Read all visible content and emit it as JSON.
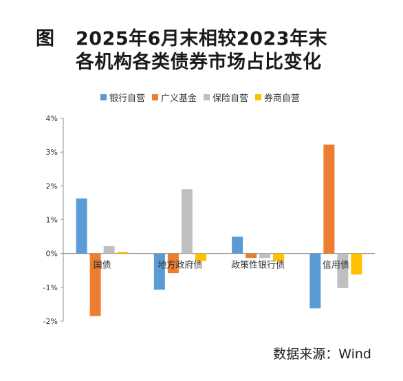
{
  "figure": {
    "label": "图",
    "title_line1": "2025年6月末相较2023年末",
    "title_line2": "各机构各类债券市场占比变化",
    "source": "数据来源：Wind"
  },
  "chart_data": {
    "type": "bar",
    "categories": [
      "国债",
      "地方政府债",
      "政策性银行债",
      "信用债"
    ],
    "series": [
      {
        "name": "银行自营",
        "color": "#5b9bd5",
        "values": [
          1.63,
          -1.07,
          0.5,
          -1.62
        ]
      },
      {
        "name": "广义基金",
        "color": "#ed7d31",
        "values": [
          -1.85,
          -0.58,
          -0.13,
          3.22
        ]
      },
      {
        "name": "保险自营",
        "color": "#bfbfbf",
        "values": [
          0.22,
          1.9,
          -0.13,
          -1.02
        ]
      },
      {
        "name": "券商自营",
        "color": "#ffc000",
        "values": [
          0.05,
          -0.22,
          -0.22,
          -0.62
        ]
      }
    ],
    "ylim": [
      -2,
      4
    ],
    "yticks": [
      "-2%",
      "-1%",
      "0%",
      "1%",
      "2%",
      "3%",
      "4%"
    ],
    "ytick_values": [
      -2,
      -1,
      0,
      1,
      2,
      3,
      4
    ],
    "legend_position": "top",
    "grid": false
  }
}
